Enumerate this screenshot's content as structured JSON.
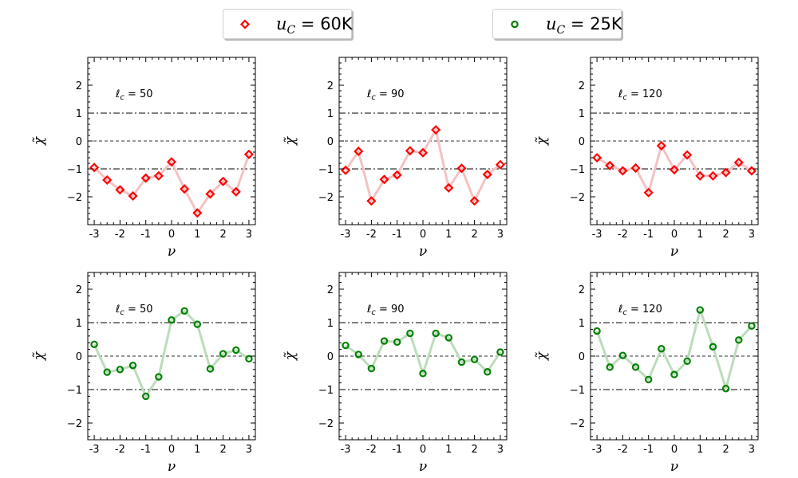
{
  "legend": {
    "entries": [
      {
        "label_var": "u",
        "label_sub": "C",
        "label_rest": " = 60K",
        "color": "#ff0000",
        "marker": "diamond"
      },
      {
        "label_var": "u",
        "label_sub": "C",
        "label_rest": " = 25K",
        "color": "#008000",
        "marker": "circle"
      }
    ]
  },
  "chart_data": [
    {
      "type": "line",
      "row": "top",
      "panel_label": "ℓ_c = 50",
      "label_var": "ℓ",
      "label_sub": "c",
      "label_value": "= 50",
      "series_name": "u_C = 60K",
      "marker_color": "#ff0000",
      "line_color": "#f4c2c2",
      "marker": "diamond",
      "x": [
        -3,
        -2.5,
        -2,
        -1.5,
        -1,
        -0.5,
        0,
        0.5,
        1,
        1.5,
        2,
        2.5,
        3
      ],
      "values": [
        -0.95,
        -1.4,
        -1.75,
        -1.97,
        -1.33,
        -1.25,
        -0.75,
        -1.72,
        -2.58,
        -1.9,
        -1.45,
        -1.82,
        -0.48
      ],
      "xlabel": "ν",
      "ylabel": "χ̃",
      "xlim": [
        -3.25,
        3.25
      ],
      "ylim": [
        -3,
        3
      ],
      "yticks": [
        -2,
        -1,
        0,
        1,
        2
      ],
      "xticks": [
        "-3",
        "-2",
        "-1",
        "0",
        "1",
        "2",
        "3"
      ]
    },
    {
      "type": "line",
      "row": "top",
      "panel_label": "ℓ_c = 90",
      "label_var": "ℓ",
      "label_sub": "c",
      "label_value": "= 90",
      "series_name": "u_C = 60K",
      "marker_color": "#ff0000",
      "line_color": "#f4c2c2",
      "marker": "diamond",
      "x": [
        -3,
        -2.5,
        -2,
        -1.5,
        -1,
        -0.5,
        0,
        0.5,
        1,
        1.5,
        2,
        2.5,
        3
      ],
      "values": [
        -1.05,
        -0.37,
        -2.15,
        -1.38,
        -1.22,
        -0.35,
        -0.42,
        0.4,
        -1.68,
        -0.98,
        -2.15,
        -1.2,
        -0.85
      ],
      "xlabel": "ν",
      "ylabel": "χ̃",
      "xlim": [
        -3.25,
        3.25
      ],
      "ylim": [
        -3,
        3
      ],
      "yticks": [
        -2,
        -1,
        0,
        1,
        2
      ],
      "xticks": [
        "-3",
        "-2",
        "-1",
        "0",
        "1",
        "2",
        "3"
      ]
    },
    {
      "type": "line",
      "row": "top",
      "panel_label": "ℓ_c = 120",
      "label_var": "ℓ",
      "label_sub": "c",
      "label_value": "= 120",
      "series_name": "u_C = 60K",
      "marker_color": "#ff0000",
      "line_color": "#f4c2c2",
      "marker": "diamond",
      "x": [
        -3,
        -2.5,
        -2,
        -1.5,
        -1,
        -0.5,
        0,
        0.5,
        1,
        1.5,
        2,
        2.5,
        3
      ],
      "values": [
        -0.6,
        -0.88,
        -1.07,
        -0.97,
        -1.85,
        -0.17,
        -1.03,
        -0.5,
        -1.25,
        -1.25,
        -1.13,
        -0.77,
        -1.07
      ],
      "xlabel": "ν",
      "ylabel": "χ̃",
      "xlim": [
        -3.25,
        3.25
      ],
      "ylim": [
        -3,
        3
      ],
      "yticks": [
        -2,
        -1,
        0,
        1,
        2
      ],
      "xticks": [
        "-3",
        "-2",
        "-1",
        "0",
        "1",
        "2",
        "3"
      ]
    },
    {
      "type": "line",
      "row": "bottom",
      "panel_label": "ℓ_c = 50",
      "label_var": "ℓ",
      "label_sub": "c",
      "label_value": "= 50",
      "series_name": "u_C = 25K",
      "marker_color": "#008000",
      "line_color": "#bcdcbc",
      "marker": "circle",
      "x": [
        -3,
        -2.5,
        -2,
        -1.5,
        -1,
        -0.5,
        0,
        0.5,
        1,
        1.5,
        2,
        2.5,
        3
      ],
      "values": [
        0.35,
        -0.48,
        -0.4,
        -0.28,
        -1.2,
        -0.62,
        1.08,
        1.35,
        0.95,
        -0.38,
        0.07,
        0.18,
        -0.08
      ],
      "xlabel": "ν",
      "ylabel": "χ̃",
      "xlim": [
        -3.25,
        3.25
      ],
      "ylim": [
        -2.5,
        2.5
      ],
      "yticks": [
        -2,
        -1,
        0,
        1,
        2
      ],
      "xticks": [
        "-3",
        "-2",
        "-1",
        "0",
        "1",
        "2",
        "3"
      ]
    },
    {
      "type": "line",
      "row": "bottom",
      "panel_label": "ℓ_c = 90",
      "label_var": "ℓ",
      "label_sub": "c",
      "label_value": "= 90",
      "series_name": "u_C = 25K",
      "marker_color": "#008000",
      "line_color": "#bcdcbc",
      "marker": "circle",
      "x": [
        -3,
        -2.5,
        -2,
        -1.5,
        -1,
        -0.5,
        0,
        0.5,
        1,
        1.5,
        2,
        2.5,
        3
      ],
      "values": [
        0.32,
        0.05,
        -0.37,
        0.45,
        0.42,
        0.68,
        -0.52,
        0.68,
        0.55,
        -0.18,
        -0.1,
        -0.47,
        0.12
      ],
      "xlabel": "ν",
      "ylabel": "χ̃",
      "xlim": [
        -3.25,
        3.25
      ],
      "ylim": [
        -2.5,
        2.5
      ],
      "yticks": [
        -2,
        -1,
        0,
        1,
        2
      ],
      "xticks": [
        "-3",
        "-2",
        "-1",
        "0",
        "1",
        "2",
        "3"
      ]
    },
    {
      "type": "line",
      "row": "bottom",
      "panel_label": "ℓ_c = 120",
      "label_var": "ℓ",
      "label_sub": "c",
      "label_value": "= 120",
      "series_name": "u_C = 25K",
      "marker_color": "#008000",
      "line_color": "#bcdcbc",
      "marker": "circle",
      "x": [
        -3,
        -2.5,
        -2,
        -1.5,
        -1,
        -0.5,
        0,
        0.5,
        1,
        1.5,
        2,
        2.5,
        3
      ],
      "values": [
        0.75,
        -0.33,
        0.02,
        -0.33,
        -0.7,
        0.22,
        -0.55,
        -0.15,
        1.38,
        0.28,
        -0.97,
        0.48,
        0.9
      ],
      "xlabel": "ν",
      "ylabel": "χ̃",
      "xlim": [
        -3.25,
        3.25
      ],
      "ylim": [
        -2.5,
        2.5
      ],
      "yticks": [
        -2,
        -1,
        0,
        1,
        2
      ],
      "xticks": [
        "-3",
        "-2",
        "-1",
        "0",
        "1",
        "2",
        "3"
      ]
    }
  ]
}
